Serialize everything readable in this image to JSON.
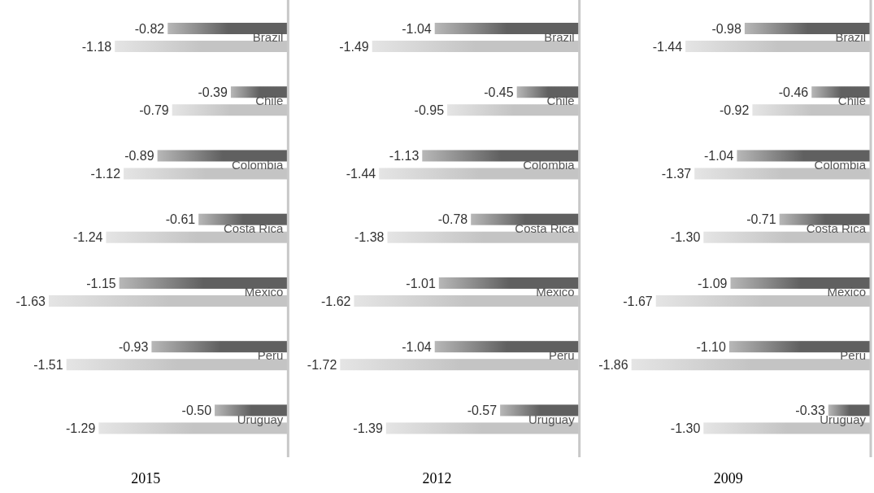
{
  "chart_data": [
    {
      "type": "bar",
      "orientation": "horizontal",
      "title": "2015",
      "categories": [
        "Brazil",
        "Chile",
        "Colombia",
        "Costa Rica",
        "Mexico",
        "Peru",
        "Uruguay"
      ],
      "series": [
        {
          "color": "#606060",
          "values": [
            -0.82,
            -0.39,
            -0.89,
            -0.61,
            -1.15,
            -0.93,
            -0.5
          ],
          "value_labels": [
            "-0.82",
            "-0.39",
            "-0.89",
            "-0.61",
            "-1.15",
            "-0.93",
            "-0.50"
          ]
        },
        {
          "color": "#c4c4c4",
          "values": [
            -1.18,
            -0.79,
            -1.12,
            -1.24,
            -1.63,
            -1.51,
            -1.29
          ],
          "value_labels": [
            "-1.18",
            "-0.79",
            "-1.12",
            "-1.24",
            "-1.63",
            "-1.51",
            "-1.29"
          ]
        }
      ]
    },
    {
      "type": "bar",
      "orientation": "horizontal",
      "title": "2012",
      "categories": [
        "Brazil",
        "Chile",
        "Colombia",
        "Costa Rica",
        "Mexico",
        "Peru",
        "Uruguay"
      ],
      "series": [
        {
          "color": "#606060",
          "values": [
            -1.04,
            -0.45,
            -1.13,
            -0.78,
            -1.01,
            -1.04,
            -0.57
          ],
          "value_labels": [
            "-1.04",
            "-0.45",
            "-1.13",
            "-0.78",
            "-1.01",
            "-1.04",
            "-0.57"
          ]
        },
        {
          "color": "#c4c4c4",
          "values": [
            -1.49,
            -0.95,
            -1.44,
            -1.38,
            -1.62,
            -1.72,
            -1.39
          ],
          "value_labels": [
            "-1.49",
            "-0.95",
            "-1.44",
            "-1.38",
            "-1.62",
            "-1.72",
            "-1.39"
          ]
        }
      ]
    },
    {
      "type": "bar",
      "orientation": "horizontal",
      "title": "2009",
      "categories": [
        "Brazil",
        "Chile",
        "Colombia",
        "Costa Rica",
        "Mexico",
        "Peru",
        "Uruguay"
      ],
      "series": [
        {
          "color": "#606060",
          "values": [
            -0.98,
            -0.46,
            -1.04,
            -0.71,
            -1.09,
            -1.1,
            -0.33
          ],
          "value_labels": [
            "-0.98",
            "-0.46",
            "-1.04",
            "-0.71",
            "-1.09",
            "-1.10",
            "-0.33"
          ]
        },
        {
          "color": "#c4c4c4",
          "values": [
            -1.44,
            -0.92,
            -1.37,
            -1.3,
            -1.67,
            -1.86,
            -1.3
          ],
          "value_labels": [
            "-1.44",
            "-0.92",
            "-1.37",
            "-1.30",
            "-1.67",
            "-1.86",
            "-1.30"
          ]
        }
      ]
    }
  ]
}
